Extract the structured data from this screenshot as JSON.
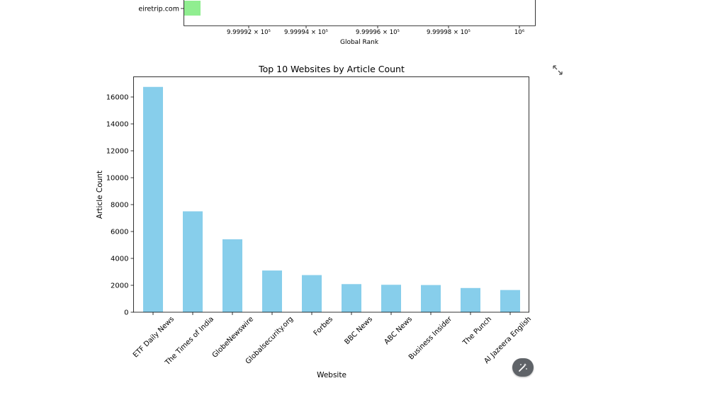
{
  "top_chart": {
    "visible_category": "eiretrip.com",
    "bar_color": "#90ee90",
    "xlabel": "Global Rank",
    "tick_labels": [
      "9.99992 × 10⁵",
      "9.99994 × 10⁵",
      "9.99996 × 10⁵",
      "9.99998 × 10⁵",
      "10⁶"
    ]
  },
  "chart_data": {
    "type": "bar",
    "title": "Top 10 Websites by Article Count",
    "xlabel": "Website",
    "ylabel": "Article Count",
    "ylim": [
      0,
      17500
    ],
    "yticks": [
      0,
      2000,
      4000,
      6000,
      8000,
      10000,
      12000,
      14000,
      16000
    ],
    "color": "#87ceeb",
    "categories": [
      "ETF Daily News",
      "The Times of India",
      "GlobeNewswire",
      "Globalsecurity.org",
      "Forbes",
      "BBC News",
      "ABC News",
      "Business Insider",
      "The Punch",
      "Al Jazeera English"
    ],
    "values": [
      16750,
      7500,
      5420,
      3100,
      2760,
      2090,
      2040,
      2020,
      1800,
      1650
    ]
  },
  "icons": {
    "expand": "expand-arrows-icon",
    "fab": "magic-wand-icon"
  }
}
